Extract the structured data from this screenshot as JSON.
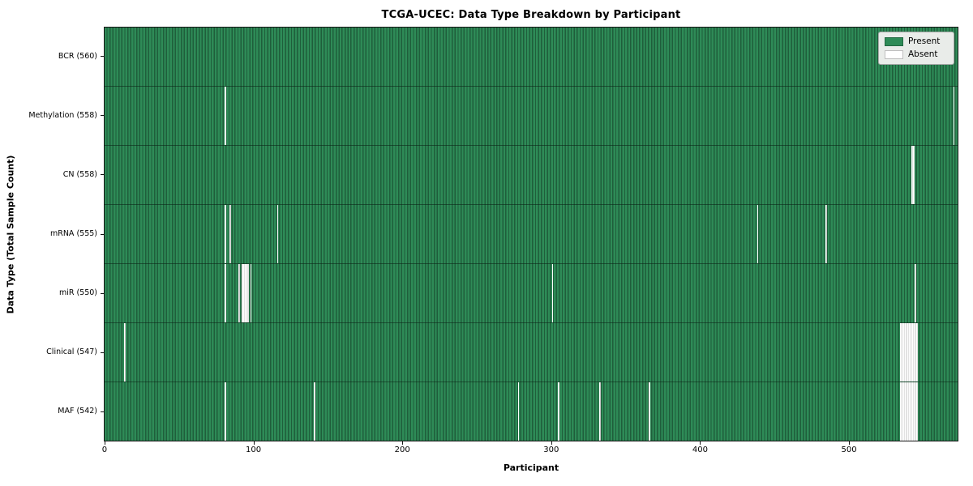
{
  "chart_data": {
    "type": "heatmap",
    "title": "TCGA-UCEC: Data Type Breakdown by Participant",
    "xlabel": "Participant",
    "ylabel": "Data Type (Total Sample Count)",
    "n_participants": 574,
    "x_ticks": [
      0,
      100,
      200,
      300,
      400,
      500
    ],
    "legend_position": "upper right",
    "grid": false,
    "colors": {
      "present": "#2e8b57",
      "present_edge": "#1f5e3b",
      "absent": "#ffffff",
      "absent_edge": "#c6c6c6",
      "legend_bg": "#e9ece9"
    },
    "legend_items": [
      {
        "label": "Present",
        "color": "#2e8b57"
      },
      {
        "label": "Absent",
        "color": "#ffffff"
      }
    ],
    "rows": [
      {
        "label": "BCR (560)",
        "data_type": "BCR",
        "sample_count": 560,
        "absent_runs": []
      },
      {
        "label": "Methylation (558)",
        "data_type": "Methylation",
        "sample_count": 558,
        "absent_runs": [
          [
            81,
            1
          ],
          [
            571,
            1
          ]
        ]
      },
      {
        "label": "CN (558)",
        "data_type": "CN",
        "sample_count": 558,
        "absent_runs": [
          [
            543,
            2
          ]
        ]
      },
      {
        "label": "mRNA (555)",
        "data_type": "mRNA",
        "sample_count": 555,
        "absent_runs": [
          [
            81,
            1
          ],
          [
            84,
            1
          ],
          [
            116,
            1
          ],
          [
            439,
            1
          ],
          [
            485,
            1
          ]
        ]
      },
      {
        "label": "miR (550)",
        "data_type": "miR",
        "sample_count": 550,
        "absent_runs": [
          [
            81,
            1
          ],
          [
            90,
            1
          ],
          [
            92,
            5
          ],
          [
            98,
            1
          ],
          [
            301,
            1
          ],
          [
            545,
            1
          ]
        ]
      },
      {
        "label": "Clinical (547)",
        "data_type": "Clinical",
        "sample_count": 547,
        "absent_runs": [
          [
            13,
            1
          ],
          [
            535,
            12
          ]
        ]
      },
      {
        "label": "MAF (542)",
        "data_type": "MAF",
        "sample_count": 542,
        "absent_runs": [
          [
            81,
            1
          ],
          [
            141,
            1
          ],
          [
            278,
            1
          ],
          [
            305,
            1
          ],
          [
            333,
            1
          ],
          [
            366,
            1
          ],
          [
            535,
            12
          ]
        ]
      }
    ]
  }
}
